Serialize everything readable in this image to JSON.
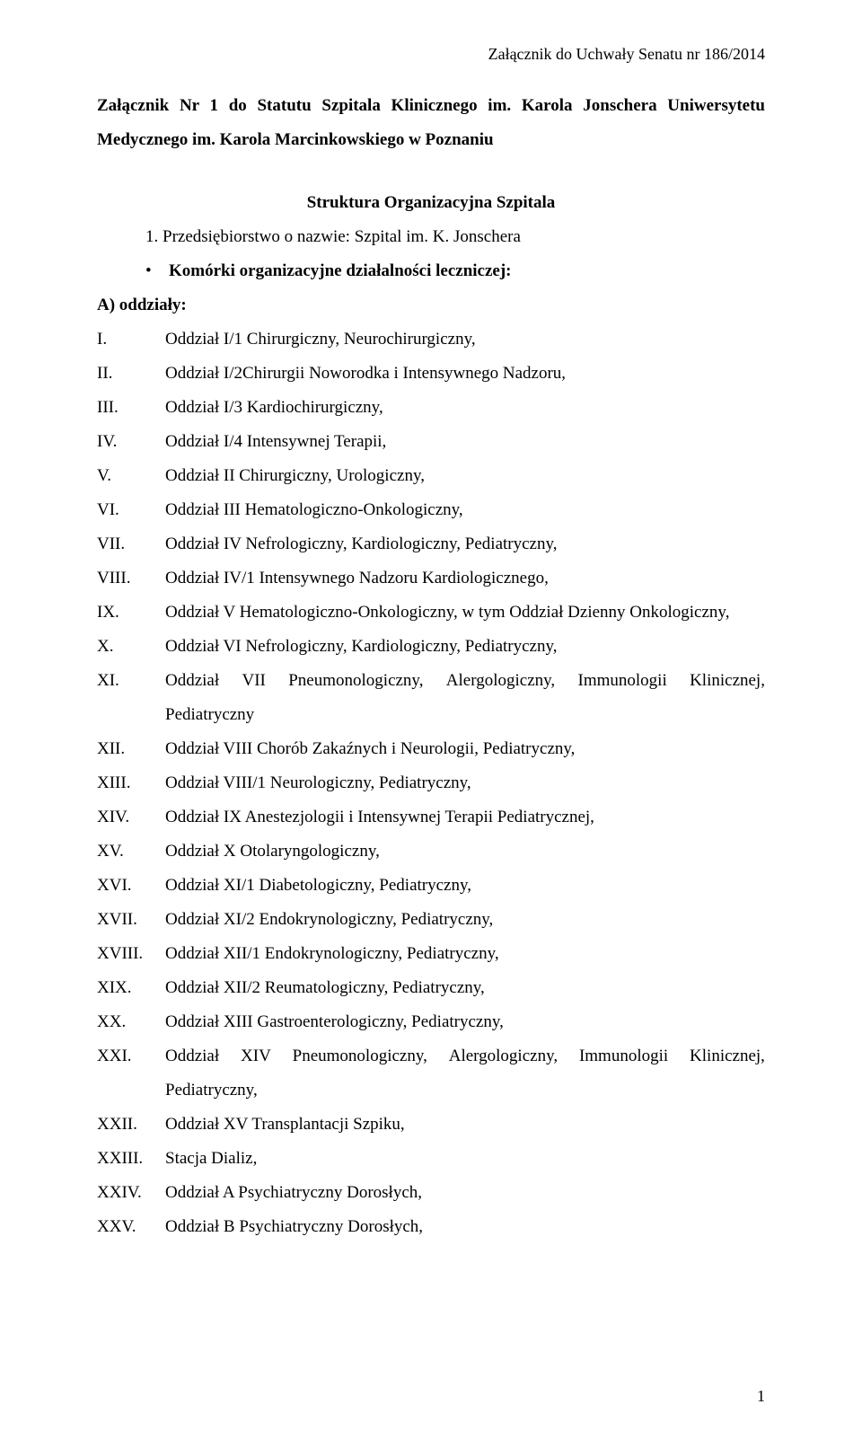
{
  "colors": {
    "text": "#000000",
    "background": "#ffffff"
  },
  "typography": {
    "family": "Times New Roman",
    "body_size_pt": 14,
    "line_height": 2.0
  },
  "attachment_header": "Załącznik do Uchwały Senatu nr 186/2014",
  "title_block": "Załącznik Nr 1 do Statutu Szpitala Klinicznego im. Karola Jonschera Uniwersytetu Medycznego im. Karola Marcinkowskiego w Poznaniu",
  "structure_title": "Struktura Organizacyjna Szpitala",
  "enterprise_line": "1.  Przedsiębiorstwo o nazwie: Szpital im. K. Jonschera",
  "bullet_text_bold": "Komórki organizacyjne działalności leczniczej:",
  "section_A_lead": "A) oddziały:",
  "items": [
    {
      "n": "I.",
      "t": "Oddział I/1 Chirurgiczny, Neurochirurgiczny,"
    },
    {
      "n": "II.",
      "t": "Oddział I/2Chirurgii Noworodka i Intensywnego Nadzoru,"
    },
    {
      "n": "III.",
      "t": "Oddział I/3 Kardiochirurgiczny,"
    },
    {
      "n": "IV.",
      "t": "Oddział I/4 Intensywnej Terapii,"
    },
    {
      "n": "V.",
      "t": "Oddział II Chirurgiczny, Urologiczny,"
    },
    {
      "n": "VI.",
      "t": "Oddział III Hematologiczno-Onkologiczny,"
    },
    {
      "n": "VII.",
      "t": "Oddział IV Nefrologiczny, Kardiologiczny, Pediatryczny,"
    },
    {
      "n": "VIII.",
      "t": "Oddział IV/1 Intensywnego Nadzoru Kardiologicznego,"
    },
    {
      "n": "IX.",
      "t": "Oddział V Hematologiczno-Onkologiczny, w tym Oddział Dzienny Onkologiczny,"
    },
    {
      "n": "X.",
      "t": "Oddział VI Nefrologiczny, Kardiologiczny, Pediatryczny,"
    },
    {
      "n": "XI.",
      "spread": [
        "Oddział",
        "VII",
        "Pneumonologiczny,",
        "Alergologiczny,",
        "Immunologii",
        "Klinicznej,"
      ],
      "wrap": "Pediatryczny"
    },
    {
      "n": "XII.",
      "t": "Oddział VIII Chorób Zakaźnych i Neurologii, Pediatryczny,"
    },
    {
      "n": "XIII.",
      "t": "Oddział VIII/1 Neurologiczny, Pediatryczny,"
    },
    {
      "n": "XIV.",
      "t": "Oddział IX Anestezjologii i Intensywnej Terapii Pediatrycznej,"
    },
    {
      "n": "XV.",
      "t": "Oddział X Otolaryngologiczny,"
    },
    {
      "n": "XVI.",
      "t": "Oddział XI/1 Diabetologiczny, Pediatryczny,"
    },
    {
      "n": "XVII.",
      "t": "Oddział XI/2 Endokrynologiczny, Pediatryczny,"
    },
    {
      "n": "XVIII.",
      "t": "Oddział XII/1 Endokrynologiczny, Pediatryczny,"
    },
    {
      "n": "XIX.",
      "t": "Oddział XII/2 Reumatologiczny, Pediatryczny,"
    },
    {
      "n": "XX.",
      "t": "Oddział XIII Gastroenterologiczny, Pediatryczny,"
    },
    {
      "n": "XXI.",
      "spread": [
        "Oddział",
        "XIV",
        "Pneumonologiczny,",
        "Alergologiczny,",
        "Immunologii",
        "Klinicznej,"
      ],
      "wrap": "Pediatryczny,"
    },
    {
      "n": "XXII.",
      "t": "Oddział XV Transplantacji Szpiku,"
    },
    {
      "n": "XXIII.",
      "t": "Stacja Dializ,"
    },
    {
      "n": "XXIV.",
      "t": "Oddział A Psychiatryczny Dorosłych,"
    },
    {
      "n": "XXV.",
      "t": "Oddział B Psychiatryczny Dorosłych,"
    }
  ],
  "page_number": "1"
}
